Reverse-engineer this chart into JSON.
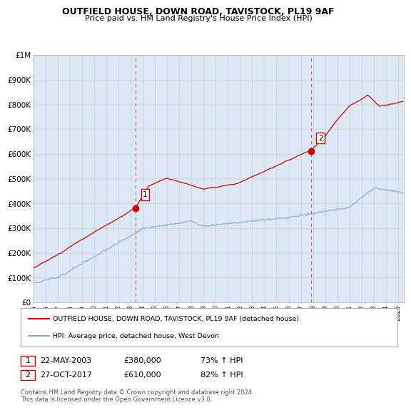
{
  "title": "OUTFIELD HOUSE, DOWN ROAD, TAVISTOCK, PL19 9AF",
  "subtitle": "Price paid vs. HM Land Registry's House Price Index (HPI)",
  "ytick_values": [
    0,
    100000,
    200000,
    300000,
    400000,
    500000,
    600000,
    700000,
    800000,
    900000,
    1000000
  ],
  "ylim": [
    0,
    1000000
  ],
  "xlim_start": 1995.0,
  "xlim_end": 2025.5,
  "sale1_x": 2003.39,
  "sale1_y": 380000,
  "sale2_x": 2017.83,
  "sale2_y": 610000,
  "legend_label_red": "OUTFIELD HOUSE, DOWN ROAD, TAVISTOCK, PL19 9AF (detached house)",
  "legend_label_blue": "HPI: Average price, detached house, West Devon",
  "annotation1_label": "1",
  "annotation1_date": "22-MAY-2003",
  "annotation1_price": "£380,000",
  "annotation1_hpi": "73% ↑ HPI",
  "annotation2_label": "2",
  "annotation2_date": "27-OCT-2017",
  "annotation2_price": "£610,000",
  "annotation2_hpi": "82% ↑ HPI",
  "footer": "Contains HM Land Registry data © Crown copyright and database right 2024.\nThis data is licensed under the Open Government Licence v3.0.",
  "red_color": "#cc0000",
  "blue_color": "#7aa8d2",
  "sale_marker_color": "#cc0000",
  "grid_color": "#cccccc",
  "chart_bg": "#dce8f5",
  "vline_color": "#dd4444",
  "background_color": "#ffffff"
}
